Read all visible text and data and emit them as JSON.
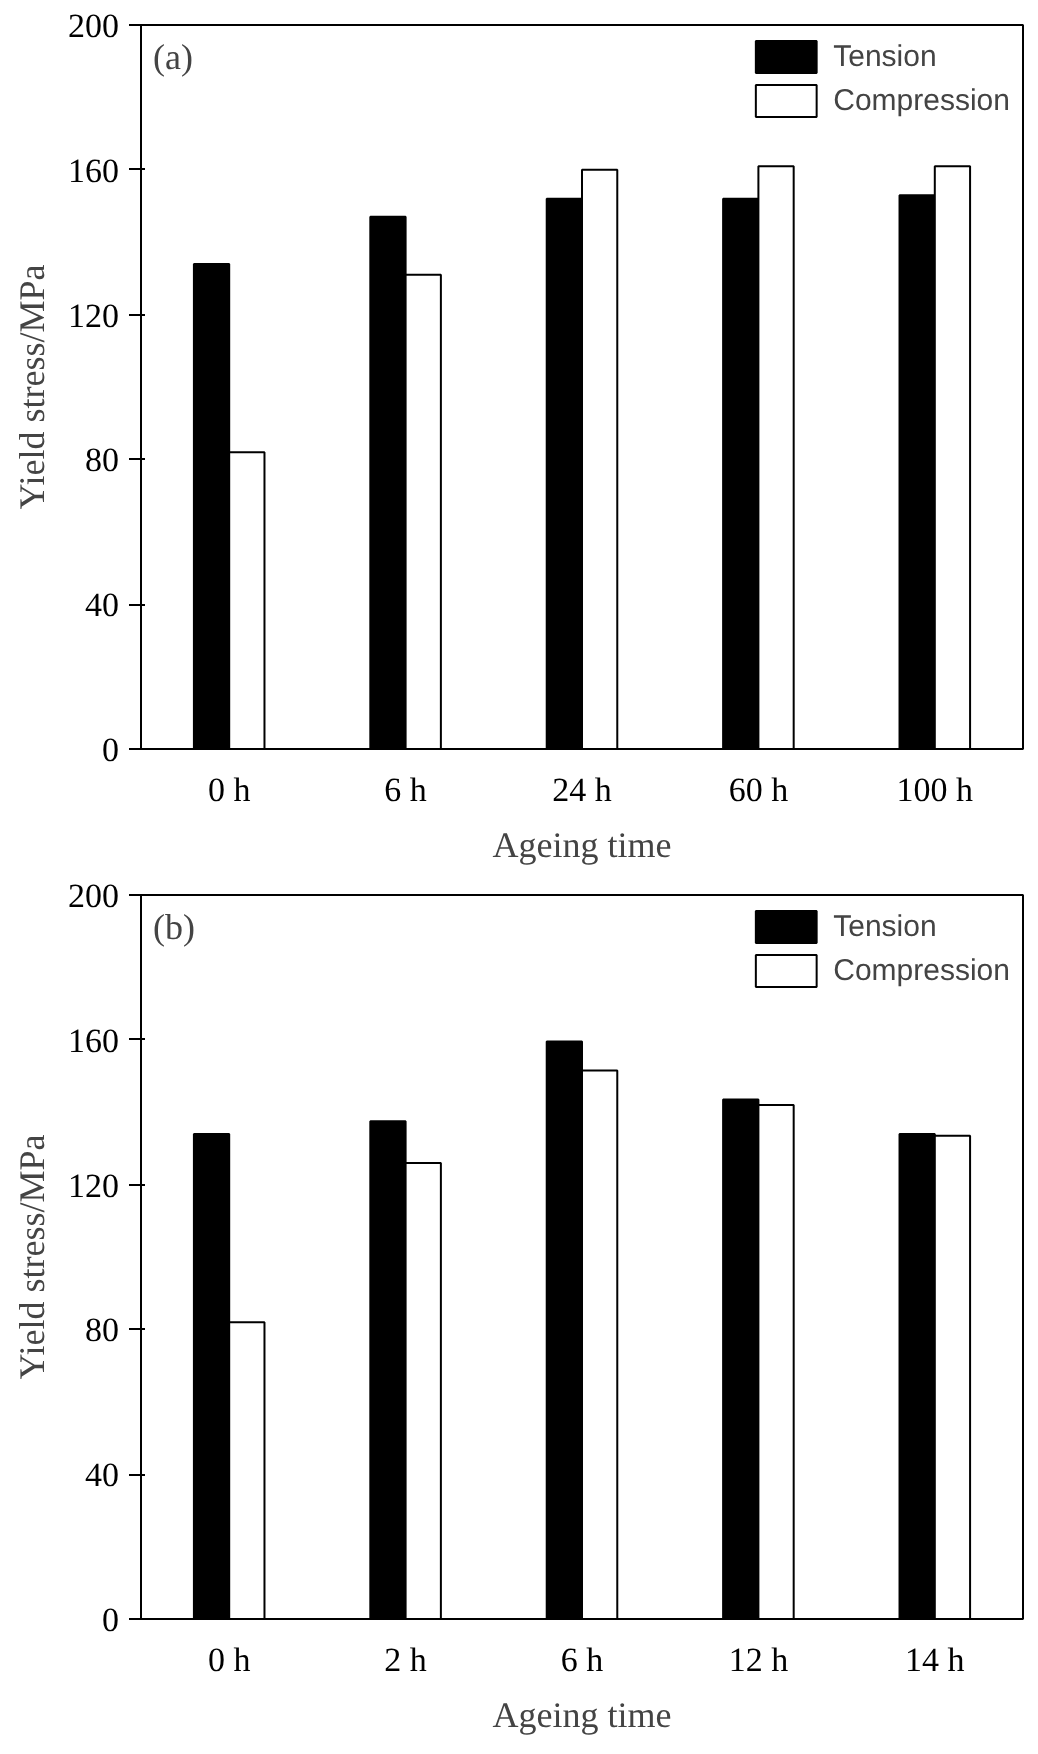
{
  "chart_data": [
    {
      "type": "bar",
      "categories": [
        "0 h",
        "6 h",
        "24 h",
        "60 h",
        "100 h"
      ],
      "xlabel": "Ageing time",
      "ylabel": "Yield stress/MPa",
      "ylim": [
        0,
        200
      ],
      "yticks": [
        0,
        40,
        80,
        120,
        160,
        200
      ],
      "legend": "top right",
      "grid": false,
      "annotations": [
        "(a)"
      ],
      "series": [
        {
          "name": "Tension",
          "color": "#000000",
          "values": [
            134,
            147,
            152,
            152,
            153
          ]
        },
        {
          "name": "Compression",
          "color": "#ffffff",
          "values": [
            82,
            131,
            160,
            161,
            161
          ]
        }
      ]
    },
    {
      "type": "bar",
      "categories": [
        "0 h",
        "2 h",
        "6 h",
        "12 h",
        "14 h"
      ],
      "xlabel": "Ageing time",
      "ylabel": "Yield stress/MPa",
      "ylim": [
        0,
        200
      ],
      "yticks": [
        0,
        40,
        80,
        120,
        160,
        200
      ],
      "legend": "top right",
      "grid": false,
      "annotations": [
        "(b)"
      ],
      "series": [
        {
          "name": "Tension",
          "color": "#000000",
          "values": [
            134,
            137.5,
            159.5,
            143.5,
            134
          ]
        },
        {
          "name": "Compression",
          "color": "#ffffff",
          "values": [
            82,
            126,
            151.5,
            142,
            133.5
          ]
        }
      ]
    }
  ]
}
